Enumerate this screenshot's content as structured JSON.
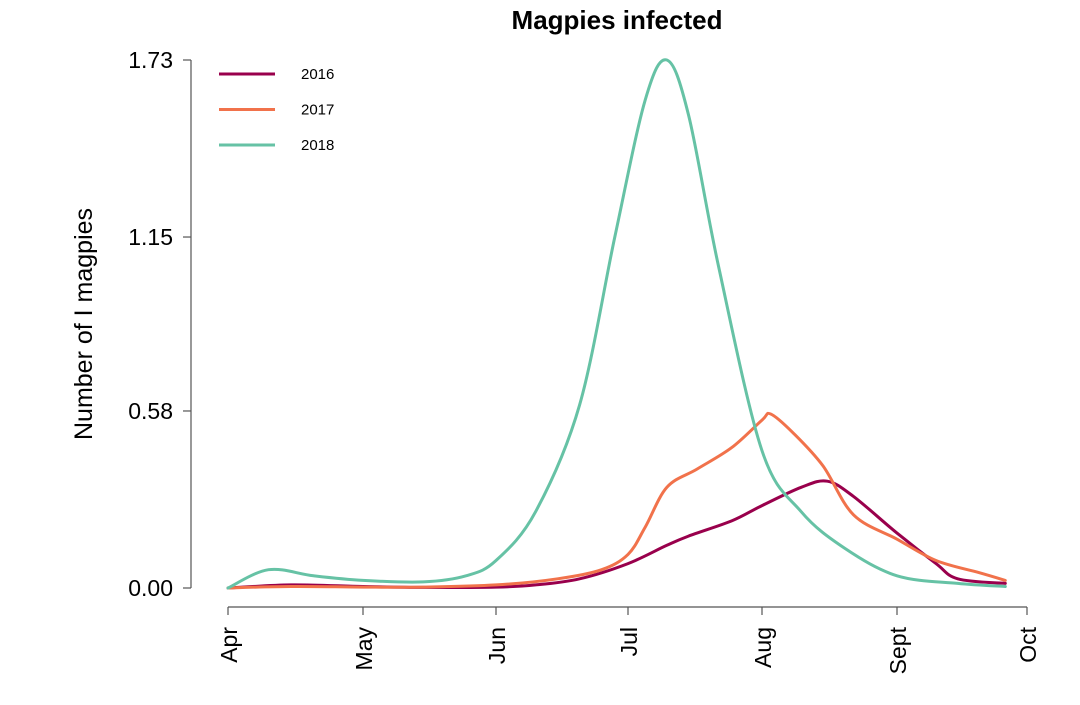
{
  "chart_data": {
    "type": "line",
    "title": "Magpies infected",
    "xlabel": "",
    "ylabel": "Number of I magpies",
    "x_ticks": [
      "Apr",
      "May",
      "Jun",
      "Jul",
      "Aug",
      "Sept",
      "Oct"
    ],
    "y_ticks": [
      "0.00",
      "0.58",
      "1.15",
      "1.73"
    ],
    "ylim": [
      0,
      1.73
    ],
    "legend_position": "top-left",
    "grid": false,
    "series": [
      {
        "name": "2016",
        "color": "#99004c",
        "points": [
          [
            "2016-04-01",
            0.0
          ],
          [
            "2016-04-15",
            0.01
          ],
          [
            "2016-05-01",
            0.005
          ],
          [
            "2016-05-15",
            0.002
          ],
          [
            "2016-06-01",
            0.003
          ],
          [
            "2016-06-10",
            0.01
          ],
          [
            "2016-06-20",
            0.03
          ],
          [
            "2016-07-01",
            0.08
          ],
          [
            "2016-07-10",
            0.14
          ],
          [
            "2016-07-15",
            0.17
          ],
          [
            "2016-07-25",
            0.22
          ],
          [
            "2016-08-01",
            0.27
          ],
          [
            "2016-08-10",
            0.33
          ],
          [
            "2016-08-16",
            0.35
          ],
          [
            "2016-08-22",
            0.3
          ],
          [
            "2016-09-01",
            0.18
          ],
          [
            "2016-09-10",
            0.08
          ],
          [
            "2016-09-15",
            0.03
          ],
          [
            "2016-09-26",
            0.015
          ]
        ]
      },
      {
        "name": "2017",
        "color": "#f1724b",
        "points": [
          [
            "2017-04-01",
            0.0
          ],
          [
            "2017-04-15",
            0.005
          ],
          [
            "2017-05-01",
            0.003
          ],
          [
            "2017-05-15",
            0.003
          ],
          [
            "2017-06-01",
            0.01
          ],
          [
            "2017-06-15",
            0.03
          ],
          [
            "2017-06-25",
            0.06
          ],
          [
            "2017-07-01",
            0.11
          ],
          [
            "2017-07-05",
            0.2
          ],
          [
            "2017-07-10",
            0.33
          ],
          [
            "2017-07-17",
            0.39
          ],
          [
            "2017-07-25",
            0.46
          ],
          [
            "2017-08-01",
            0.55
          ],
          [
            "2017-08-03",
            0.57
          ],
          [
            "2017-08-08",
            0.51
          ],
          [
            "2017-08-15",
            0.4
          ],
          [
            "2017-08-22",
            0.24
          ],
          [
            "2017-09-01",
            0.16
          ],
          [
            "2017-09-10",
            0.09
          ],
          [
            "2017-09-20",
            0.05
          ],
          [
            "2017-09-26",
            0.025
          ]
        ]
      },
      {
        "name": "2018",
        "color": "#66c2a5",
        "points": [
          [
            "2018-04-01",
            0.0
          ],
          [
            "2018-04-10",
            0.06
          ],
          [
            "2018-04-20",
            0.04
          ],
          [
            "2018-05-01",
            0.025
          ],
          [
            "2018-05-15",
            0.02
          ],
          [
            "2018-05-25",
            0.04
          ],
          [
            "2018-06-01",
            0.09
          ],
          [
            "2018-06-10",
            0.25
          ],
          [
            "2018-06-20",
            0.6
          ],
          [
            "2018-06-28",
            1.15
          ],
          [
            "2018-07-05",
            1.6
          ],
          [
            "2018-07-10",
            1.73
          ],
          [
            "2018-07-15",
            1.55
          ],
          [
            "2018-07-22",
            1.05
          ],
          [
            "2018-08-01",
            0.45
          ],
          [
            "2018-08-10",
            0.25
          ],
          [
            "2018-08-20",
            0.13
          ],
          [
            "2018-09-01",
            0.04
          ],
          [
            "2018-09-15",
            0.015
          ],
          [
            "2018-09-26",
            0.005
          ]
        ]
      }
    ]
  }
}
